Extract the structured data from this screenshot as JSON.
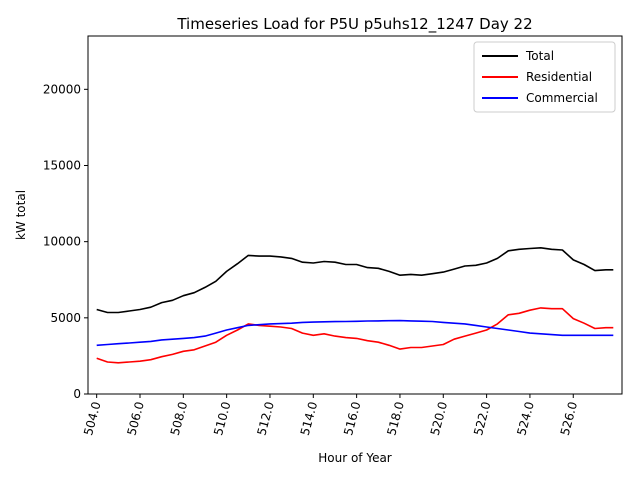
{
  "chart_data": {
    "type": "line",
    "title": "Timeseries Load for P5U p5uhs12_1247  Day 22",
    "xlabel": "Hour of Year",
    "ylabel": "kW total",
    "xlim": [
      503.6,
      528.25
    ],
    "ylim": [
      0,
      23500
    ],
    "xticks": [
      504,
      506,
      508,
      510,
      512,
      514,
      516,
      518,
      520,
      522,
      524,
      526
    ],
    "xtick_labels": [
      "504.0",
      "506.0",
      "508.0",
      "510.0",
      "512.0",
      "514.0",
      "516.0",
      "518.0",
      "520.0",
      "522.0",
      "524.0",
      "526.0"
    ],
    "yticks": [
      0,
      5000,
      10000,
      15000,
      20000
    ],
    "ytick_labels": [
      "0",
      "5000",
      "10000",
      "15000",
      "20000"
    ],
    "legend_position": "top-right",
    "colors": {
      "Total": "#000000",
      "Residential": "#ff0000",
      "Commercial": "#0000ff"
    },
    "series": [
      {
        "name": "Total",
        "x": [
          504,
          504.5,
          505,
          505.5,
          506,
          506.5,
          507,
          507.5,
          508,
          508.5,
          509,
          509.5,
          510,
          510.5,
          511,
          511.5,
          512,
          512.5,
          513,
          513.5,
          514,
          514.5,
          515,
          515.5,
          516,
          516.5,
          517,
          517.5,
          518,
          518.5,
          519,
          519.5,
          520,
          520.5,
          521,
          521.5,
          522,
          522.5,
          523,
          523.5,
          524,
          524.5,
          525,
          525.5,
          526,
          526.5,
          527,
          527.5,
          527.85
        ],
        "values": [
          5550,
          5350,
          5350,
          5450,
          5550,
          5700,
          6000,
          6150,
          6450,
          6650,
          7000,
          7400,
          8050,
          8550,
          9100,
          9050,
          9050,
          9000,
          8900,
          8650,
          8600,
          8700,
          8650,
          8500,
          8500,
          8300,
          8250,
          8050,
          7800,
          7850,
          7800,
          7900,
          8000,
          8200,
          8400,
          8450,
          8600,
          8900,
          9400,
          9500,
          9550,
          9600,
          9500,
          9450,
          8800,
          8500,
          8100,
          8150,
          8150
        ]
      },
      {
        "name": "Residential",
        "x": [
          504,
          504.5,
          505,
          505.5,
          506,
          506.5,
          507,
          507.5,
          508,
          508.5,
          509,
          509.5,
          510,
          510.5,
          511,
          511.5,
          512,
          512.5,
          513,
          513.5,
          514,
          514.5,
          515,
          515.5,
          516,
          516.5,
          517,
          517.5,
          518,
          518.5,
          519,
          519.5,
          520,
          520.5,
          521,
          521.5,
          522,
          522.5,
          523,
          523.5,
          524,
          524.5,
          525,
          525.5,
          526,
          526.5,
          527,
          527.5,
          527.85
        ],
        "values": [
          2350,
          2100,
          2050,
          2100,
          2150,
          2250,
          2450,
          2600,
          2800,
          2900,
          3150,
          3400,
          3850,
          4200,
          4600,
          4500,
          4450,
          4400,
          4300,
          4000,
          3850,
          3950,
          3800,
          3700,
          3650,
          3500,
          3400,
          3200,
          2950,
          3050,
          3050,
          3150,
          3250,
          3600,
          3800,
          4000,
          4200,
          4600,
          5200,
          5300,
          5500,
          5650,
          5600,
          5600,
          4950,
          4650,
          4300,
          4350,
          4350
        ]
      },
      {
        "name": "Commercial",
        "x": [
          504,
          504.5,
          505,
          505.5,
          506,
          506.5,
          507,
          507.5,
          508,
          508.5,
          509,
          509.5,
          510,
          510.5,
          511,
          511.5,
          512,
          512.5,
          513,
          513.5,
          514,
          514.5,
          515,
          515.5,
          516,
          516.5,
          517,
          517.5,
          518,
          518.5,
          519,
          519.5,
          520,
          520.5,
          521,
          521.5,
          522,
          522.5,
          523,
          523.5,
          524,
          524.5,
          525,
          525.5,
          526,
          526.5,
          527,
          527.5,
          527.85
        ],
        "values": [
          3200,
          3250,
          3300,
          3350,
          3400,
          3450,
          3550,
          3600,
          3650,
          3700,
          3800,
          4000,
          4200,
          4350,
          4500,
          4550,
          4600,
          4620,
          4650,
          4700,
          4720,
          4740,
          4750,
          4760,
          4770,
          4790,
          4800,
          4810,
          4820,
          4800,
          4780,
          4760,
          4700,
          4650,
          4600,
          4500,
          4400,
          4300,
          4200,
          4100,
          4000,
          3950,
          3900,
          3850,
          3850,
          3850,
          3850,
          3850,
          3850
        ]
      }
    ]
  }
}
